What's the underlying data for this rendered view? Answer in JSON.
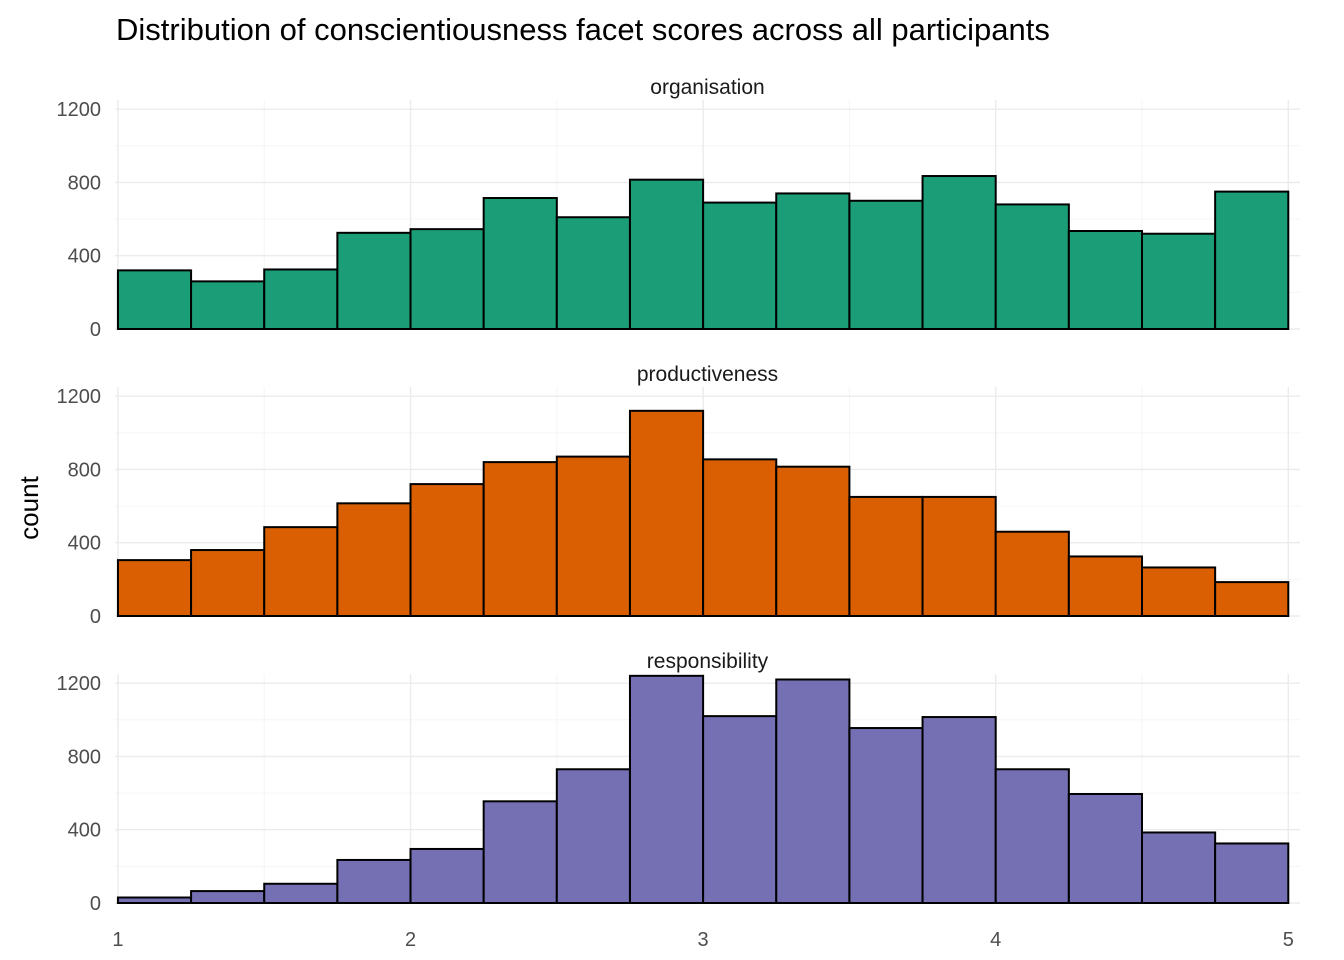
{
  "chart_data": {
    "type": "bar",
    "title": "Distribution of conscientiousness facet scores across all participants",
    "xlabel": "",
    "ylabel": "count",
    "xlim": [
      0.99,
      5.04
    ],
    "ylim": [
      0,
      1250
    ],
    "x_ticks": [
      1,
      2,
      3,
      4,
      5
    ],
    "y_ticks": [
      0,
      400,
      800,
      1200
    ],
    "grid": true,
    "legend": "none",
    "bin_edges": [
      1,
      1.25,
      1.5,
      1.75,
      2,
      2.25,
      2.5,
      2.75,
      3,
      3.25,
      3.5,
      3.75,
      4,
      4.25,
      4.5,
      4.75,
      5
    ],
    "facets": [
      {
        "label": "organisation",
        "color": "#1B9E77",
        "values": [
          320,
          260,
          325,
          525,
          545,
          715,
          610,
          815,
          690,
          740,
          700,
          835,
          680,
          535,
          520,
          750
        ]
      },
      {
        "label": "productiveness",
        "color": "#D95F02",
        "values": [
          305,
          360,
          485,
          615,
          720,
          840,
          870,
          1120,
          855,
          815,
          650,
          650,
          460,
          325,
          265,
          185
        ]
      },
      {
        "label": "responsibility",
        "color": "#7570B3",
        "values": [
          30,
          65,
          105,
          235,
          295,
          555,
          730,
          1240,
          1020,
          1220,
          955,
          1015,
          730,
          595,
          385,
          325
        ]
      }
    ]
  }
}
